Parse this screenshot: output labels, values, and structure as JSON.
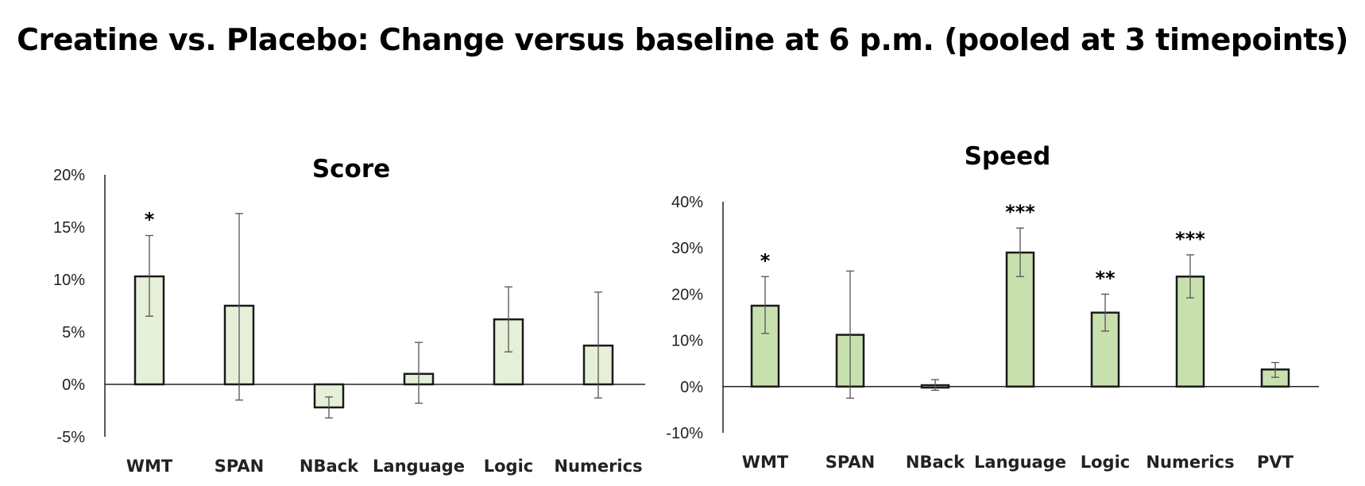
{
  "title": "Creatine vs. Placebo: Change versus baseline at 6 p.m. (pooled at 3 timepoints)",
  "chart_data": [
    {
      "type": "bar",
      "title": "Score",
      "categories": [
        "WMT",
        "SPAN",
        "NBack",
        "Language",
        "Logic",
        "Numerics"
      ],
      "values": [
        10.3,
        7.5,
        -2.2,
        1.0,
        6.2,
        3.7
      ],
      "error_low": [
        6.5,
        -1.5,
        -3.2,
        -1.8,
        3.1,
        -1.3
      ],
      "error_high": [
        14.2,
        16.3,
        -1.2,
        4.0,
        9.3,
        8.8
      ],
      "significance": [
        "*",
        "",
        "",
        "",
        "",
        ""
      ],
      "ylim": [
        -5,
        20
      ],
      "yticks": [
        "-5%",
        "0%",
        "5%",
        "10%",
        "15%",
        "20%"
      ],
      "ytick_values": [
        -5,
        0,
        5,
        10,
        15,
        20
      ],
      "bar_fill": "#e6f0d9",
      "bar_stroke": "#1a1a1a"
    },
    {
      "type": "bar",
      "title": "Speed",
      "categories": [
        "WMT",
        "SPAN",
        "NBack",
        "Language",
        "Logic",
        "Numerics",
        "PVT"
      ],
      "values": [
        17.5,
        11.2,
        0.3,
        29.0,
        16.0,
        23.8,
        3.7
      ],
      "error_low": [
        11.5,
        -2.5,
        -0.8,
        23.8,
        12.0,
        19.2,
        2.0
      ],
      "error_high": [
        23.8,
        25.0,
        1.5,
        34.3,
        20.0,
        28.5,
        5.2
      ],
      "significance": [
        "*",
        "",
        "",
        "***",
        "**",
        "***",
        ""
      ],
      "ylim": [
        -10,
        40
      ],
      "yticks": [
        "-10%",
        "0%",
        "10%",
        "20%",
        "30%",
        "40%"
      ],
      "ytick_values": [
        -10,
        0,
        10,
        20,
        30,
        40
      ],
      "bar_fill": "#c8e0ae",
      "bar_stroke": "#1a1a1a"
    }
  ]
}
